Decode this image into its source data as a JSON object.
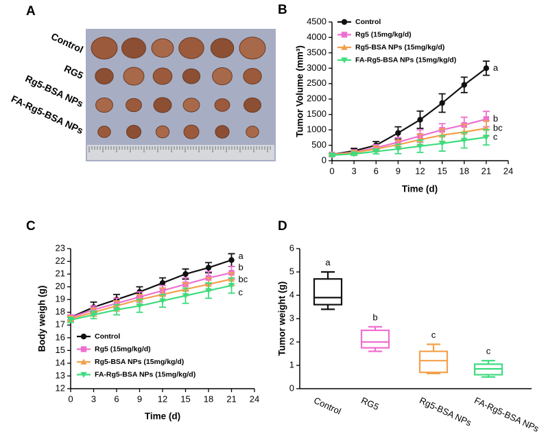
{
  "photo": {
    "label": "A",
    "rows": [
      "Control",
      "RG5",
      "Rg5-BSA NPs",
      "FA-Rg5-BSA NPs"
    ]
  },
  "chart_data": [
    {
      "type": "line",
      "panel": "B",
      "x_label": "Time (d)",
      "y_label": "Tumor Volume (mm³)",
      "x": [
        0,
        3,
        6,
        9,
        12,
        15,
        18,
        21
      ],
      "xlim": [
        0,
        24
      ],
      "xticks": [
        0,
        3,
        6,
        9,
        12,
        15,
        18,
        21,
        24
      ],
      "ylim": [
        0,
        4500
      ],
      "yticks": [
        0,
        500,
        1000,
        1500,
        2000,
        2500,
        3000,
        3500,
        4000,
        4500
      ],
      "legend": "top-left",
      "series": [
        {
          "name": "Control",
          "color": "#111111",
          "marker": "circle",
          "group": "a",
          "values": [
            200,
            320,
            500,
            900,
            1330,
            1870,
            2460,
            3000
          ],
          "errors": [
            50,
            80,
            120,
            200,
            280,
            300,
            250,
            230
          ]
        },
        {
          "name": "Rg5 (15mg/kg/d)",
          "color": "#ee6fd0",
          "marker": "square",
          "group": "b",
          "values": [
            200,
            280,
            420,
            600,
            800,
            1000,
            1160,
            1350
          ],
          "errors": [
            50,
            60,
            100,
            150,
            200,
            200,
            250,
            250
          ]
        },
        {
          "name": "Rg5-BSA NPs (15mg/kg/d)",
          "color": "#f3a04a",
          "marker": "triangle-up",
          "group": "bc",
          "values": [
            200,
            260,
            380,
            520,
            680,
            830,
            930,
            1050
          ],
          "errors": [
            40,
            60,
            90,
            150,
            180,
            200,
            250,
            250
          ]
        },
        {
          "name": "FA-Rg5-BSA NPs (15mg/kg/d)",
          "color": "#3ddc7e",
          "marker": "triangle-down",
          "group": "c",
          "values": [
            180,
            220,
            300,
            380,
            470,
            560,
            660,
            760
          ],
          "errors": [
            40,
            50,
            80,
            150,
            200,
            250,
            250,
            250
          ]
        }
      ]
    },
    {
      "type": "line",
      "panel": "C",
      "x_label": "Time (d)",
      "y_label": "Body weigh (g)",
      "x": [
        0,
        3,
        6,
        9,
        12,
        15,
        18,
        21
      ],
      "xlim": [
        0,
        24
      ],
      "xticks": [
        0,
        3,
        6,
        9,
        12,
        15,
        18,
        21,
        24
      ],
      "ylim": [
        12,
        23
      ],
      "yticks": [
        12,
        13,
        14,
        15,
        16,
        17,
        18,
        19,
        20,
        21,
        22,
        23
      ],
      "legend": "bottom-left",
      "series": [
        {
          "name": "Control",
          "color": "#111111",
          "marker": "circle",
          "group": "a",
          "values": [
            17.6,
            18.4,
            19.0,
            19.6,
            20.3,
            21.0,
            21.5,
            22.1
          ],
          "errors": [
            0.2,
            0.4,
            0.4,
            0.4,
            0.4,
            0.4,
            0.4,
            0.5
          ]
        },
        {
          "name": "Rg5 (15mg/kg/d)",
          "color": "#ee6fd0",
          "marker": "square",
          "group": "b",
          "values": [
            17.6,
            18.2,
            18.7,
            19.2,
            19.7,
            20.2,
            20.7,
            21.1
          ],
          "errors": [
            0.2,
            0.3,
            0.4,
            0.4,
            0.4,
            0.5,
            0.5,
            0.5
          ]
        },
        {
          "name": "Rg5-BSA NPs (15mg/kg/d)",
          "color": "#f3a04a",
          "marker": "triangle-up",
          "group": "bc",
          "values": [
            17.5,
            18.0,
            18.5,
            19.0,
            19.4,
            19.8,
            20.2,
            20.6
          ],
          "errors": [
            0.2,
            0.3,
            0.4,
            0.4,
            0.5,
            0.5,
            0.5,
            0.5
          ]
        },
        {
          "name": "FA-Rg5-BSA NPs (15mg/kg/d)",
          "color": "#3ddc7e",
          "marker": "triangle-down",
          "group": "c",
          "values": [
            17.4,
            17.8,
            18.2,
            18.5,
            18.9,
            19.3,
            19.7,
            20.1
          ],
          "errors": [
            0.2,
            0.3,
            0.4,
            0.5,
            0.5,
            0.6,
            0.6,
            0.6
          ]
        }
      ]
    },
    {
      "type": "box",
      "panel": "D",
      "y_label": "Tumor weight (g)",
      "categories": [
        "Control",
        "RG5",
        "Rg5-BSA NPs",
        "FA-Rg5-BSA NPs"
      ],
      "colors": [
        "#111111",
        "#ee6fd0",
        "#f3a04a",
        "#3ddc7e"
      ],
      "groups": [
        "a",
        "b",
        "c",
        "c"
      ],
      "stats": [
        {
          "min": 3.4,
          "q1": 3.6,
          "median": 3.9,
          "q3": 4.7,
          "max": 5.0
        },
        {
          "min": 1.6,
          "q1": 1.75,
          "median": 2.0,
          "q3": 2.5,
          "max": 2.65
        },
        {
          "min": 0.65,
          "q1": 0.7,
          "median": 1.2,
          "q3": 1.6,
          "max": 1.9
        },
        {
          "min": 0.5,
          "q1": 0.6,
          "median": 0.85,
          "q3": 1.05,
          "max": 1.2
        }
      ],
      "ylim": [
        0,
        6
      ],
      "yticks": [
        0,
        1,
        2,
        3,
        4,
        5,
        6
      ]
    }
  ]
}
